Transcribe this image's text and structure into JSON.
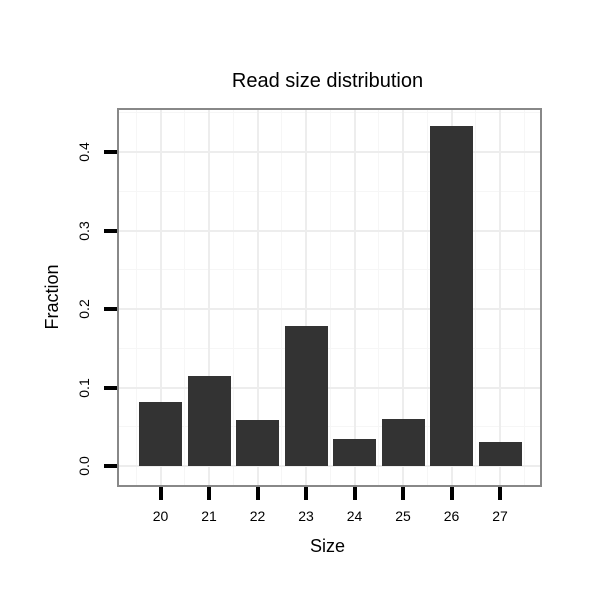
{
  "title": "Read size distribution",
  "chart_data": {
    "type": "bar",
    "title": "Read size distribution",
    "xlabel": "Size",
    "ylabel": "Fraction",
    "categories": [
      "20",
      "21",
      "22",
      "23",
      "24",
      "25",
      "26",
      "27"
    ],
    "values": [
      0.082,
      0.115,
      0.058,
      0.178,
      0.035,
      0.06,
      0.433,
      0.031
    ],
    "ylim": [
      0,
      0.452
    ],
    "yticks": [
      0.0,
      0.1,
      0.2,
      0.3,
      0.4
    ],
    "ytick_labels": [
      "0.0",
      "0.1",
      "0.2",
      "0.3",
      "0.4"
    ],
    "yticks_minor": [
      0.05,
      0.15,
      0.25,
      0.35,
      0.45
    ],
    "grid": true,
    "legend": "none",
    "colors": {
      "bar_fill": "#333333",
      "panel_border": "#888888",
      "grid_major": "#ededed",
      "grid_minor": "#f6f6f6",
      "tick": "#000000",
      "text": "#000000",
      "background": "#ffffff"
    }
  }
}
